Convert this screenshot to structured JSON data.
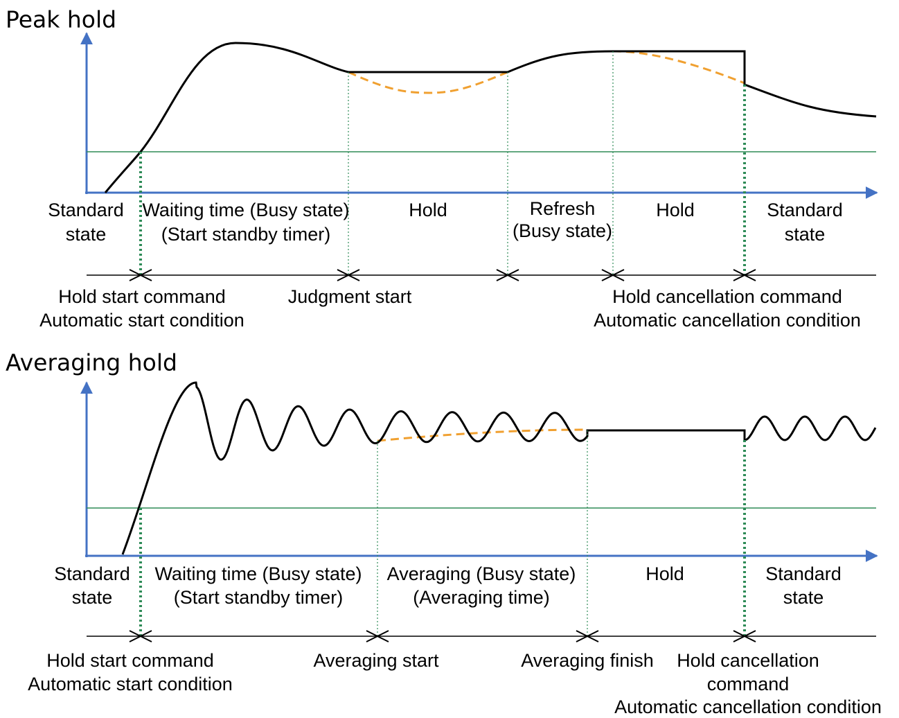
{
  "sections": [
    {
      "title": "Peak hold",
      "states": [
        [
          "Standard",
          "state"
        ],
        [
          "Waiting time (Busy state)",
          "(Start standby timer)"
        ],
        [
          "Hold"
        ],
        [
          "Refresh",
          "(Busy state)"
        ],
        [
          "Hold"
        ],
        [
          "Standard",
          "state"
        ]
      ],
      "events": [
        [
          "Hold start command",
          "Automatic start condition"
        ],
        [
          "Judgment start"
        ],
        [
          "Hold cancellation command",
          "Automatic cancellation condition"
        ]
      ]
    },
    {
      "title": "Averaging hold",
      "states": [
        [
          "Standard",
          "state"
        ],
        [
          "Waiting time (Busy state)",
          "(Start standby timer)"
        ],
        [
          "Averaging (Busy state)",
          "(Averaging time)"
        ],
        [
          "Hold"
        ],
        [
          "Standard",
          "state"
        ]
      ],
      "events": [
        [
          "Hold start command",
          "Automatic start condition"
        ],
        [
          "Averaging start"
        ],
        [
          "Averaging finish"
        ],
        [
          "Hold cancellation",
          "command",
          "Automatic cancellation condition"
        ]
      ]
    }
  ]
}
